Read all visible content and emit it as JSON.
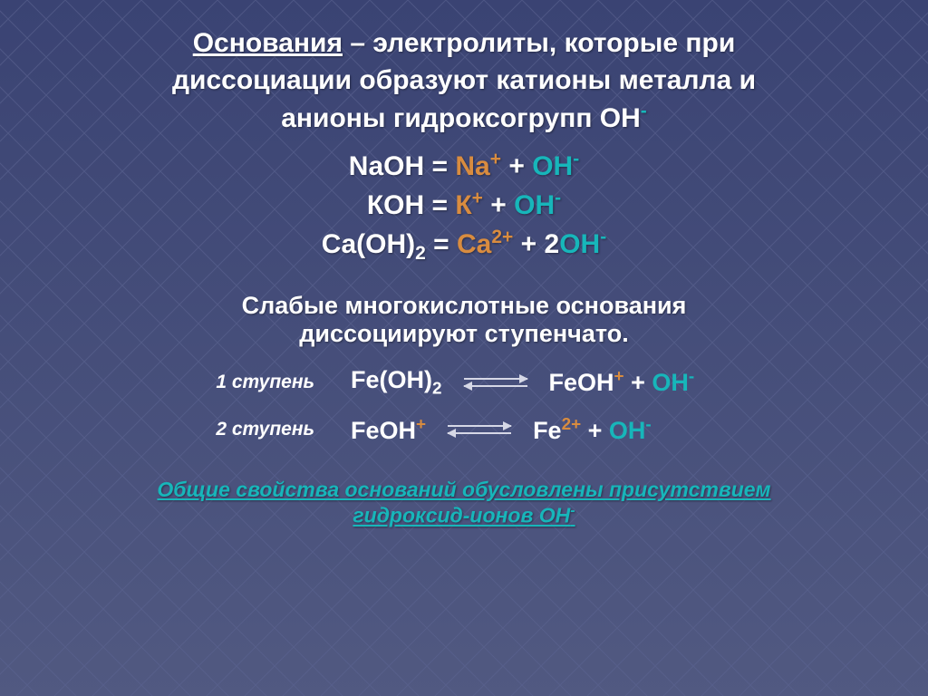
{
  "colors": {
    "bg_top": "#3a4373",
    "bg_bottom": "#515981",
    "grid_line": "#5c6491",
    "text_main": "#ffffff",
    "accent_orange": "#d98c3f",
    "accent_teal": "#17b6ba",
    "arrow_color": "#d6d8e6",
    "footer_color": "#17b6ba"
  },
  "typography": {
    "title_fontsize": 30,
    "eq_fontsize": 30,
    "subheading_fontsize": 27,
    "step_label_fontsize": 21,
    "step_eq_fontsize": 27,
    "footer_fontsize": 23
  },
  "title": {
    "term": "Основания",
    "rest_line1": " – электролиты, которые при",
    "line2": "диссоциации образуют катионы металла и",
    "line3_pre": "анионы гидроксогрупп ",
    "line3_oh": "ОН",
    "line3_sup": "-"
  },
  "equations": [
    {
      "lhs": "NaOH",
      "eq": " = ",
      "cation": "Na",
      "cation_sup": "+",
      "plus": " + ",
      "anion": "OH",
      "anion_sup": "-"
    },
    {
      "lhs": "КОН",
      "eq": " = ",
      "cation": "К",
      "cation_sup": "+",
      "plus": " + ",
      "anion": "OH",
      "anion_sup": "-"
    },
    {
      "lhs": "Ca(OH)",
      "lhs_sub": "2",
      "eq": " = ",
      "cation": "Ca",
      "cation_sup": "2+",
      "plus": " + 2",
      "anion": "OH",
      "anion_sup": "-"
    }
  ],
  "subheading": {
    "line1": "Слабые многокислотные основания",
    "line2": "диссоциируют ступенчато."
  },
  "steps": [
    {
      "label": "1 ступень",
      "left_formula": "Fe(OH)",
      "left_sub": "2",
      "right_cation": "FeOH",
      "right_cation_sup": "+",
      "plus": " + ",
      "right_anion": "OH",
      "right_anion_sup": "-"
    },
    {
      "label": "2 ступень",
      "left_formula": "FeOH",
      "left_sup": "+",
      "right_cation": "Fe",
      "right_cation_sup": "2+",
      "plus": " + ",
      "right_anion": "OH",
      "right_anion_sup": "-"
    }
  ],
  "footer": {
    "line1": "Общие свойства оснований обусловлены присутствием",
    "line2_pre": "гидроксид-ионов ОН",
    "line2_sup": "-"
  }
}
